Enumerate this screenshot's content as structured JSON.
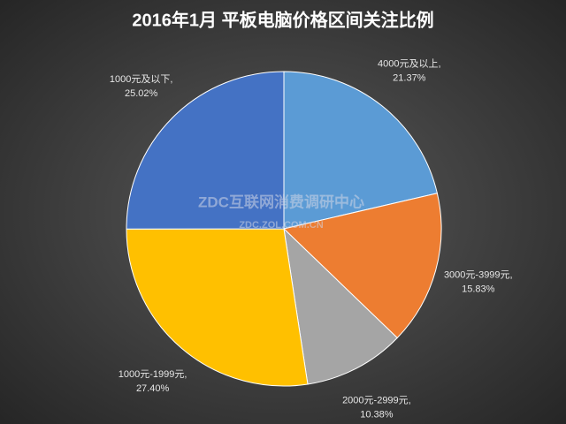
{
  "chart_data": {
    "type": "pie",
    "title": "2016年1月 平板电脑价格区间关注比例",
    "categories": [
      "4000元及以上,",
      "3000元-3999元,",
      "2000元-2999元,",
      "1000元-1999元,",
      "1000元及以下,"
    ],
    "values": [
      21.37,
      15.83,
      10.38,
      27.4,
      25.02
    ],
    "value_labels": [
      "21.37%",
      "15.83%",
      "10.38%",
      "27.40%",
      "25.02%"
    ],
    "colors": [
      "#5b9bd5",
      "#ed7d31",
      "#a5a5a5",
      "#ffc000",
      "#4472c4"
    ],
    "annotations": [
      "ZDC互联网消费调研中心",
      "ZDC.ZOL.COM.CN"
    ]
  }
}
